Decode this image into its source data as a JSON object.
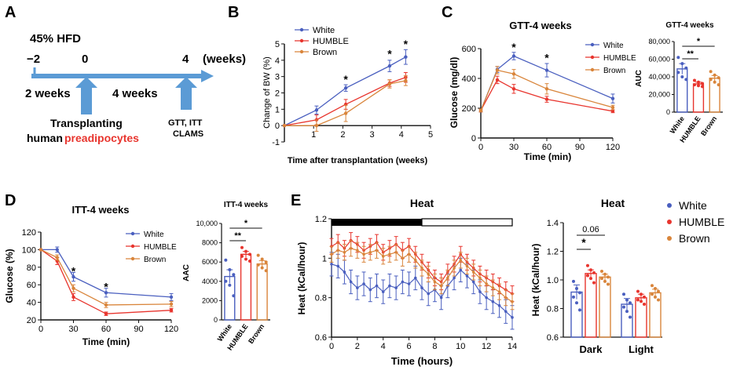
{
  "colors": {
    "white": "#4a5fbf",
    "humble": "#e8352e",
    "brown": "#d9853b",
    "axis": "#111111",
    "timeline": "#5b9bd5",
    "red_text": "#e8352e"
  },
  "panel_letters": [
    "A",
    "B",
    "C",
    "D",
    "E"
  ],
  "panelA": {
    "diet": "45% HFD",
    "ticks": [
      "−2",
      "0",
      "4"
    ],
    "unit": "(weeks)",
    "period1": "2 weeks",
    "period2": "4 weeks",
    "event1_line1": "Transplanting",
    "event1_line2a": "human",
    "event1_line2b": "preadipocytes",
    "event2_line1": "GTT, ITT",
    "event2_line2": "CLAMS"
  },
  "chart_data": [
    {
      "id": "B",
      "type": "line",
      "xlabel": "Time after transplantation (weeks)",
      "ylabel": "Change of BW (%)",
      "xlim": [
        0,
        5
      ],
      "ylim": [
        -1,
        5
      ],
      "xticks": [
        1,
        2,
        3,
        4,
        5
      ],
      "yticks": [
        -1,
        0,
        1,
        2,
        3,
        4,
        5
      ],
      "legend": [
        "White",
        "HUMBLE",
        "Brown"
      ],
      "legend_position": "top-left",
      "series": [
        {
          "name": "White",
          "x": [
            0,
            1.1,
            2.1,
            3.6,
            4.15
          ],
          "y": [
            0,
            0.95,
            2.3,
            3.65,
            4.2
          ],
          "err": [
            0,
            0.25,
            0.2,
            0.35,
            0.45
          ]
        },
        {
          "name": "HUMBLE",
          "x": [
            0,
            1.1,
            2.1,
            3.6,
            4.15
          ],
          "y": [
            0,
            0.35,
            1.3,
            2.6,
            2.95
          ],
          "err": [
            0,
            0.3,
            0.3,
            0.2,
            0.3
          ]
        },
        {
          "name": "Brown",
          "x": [
            0,
            1.1,
            2.1,
            3.6,
            4.15
          ],
          "y": [
            0,
            0.0,
            0.75,
            2.55,
            2.75
          ],
          "err": [
            0,
            0.35,
            0.5,
            0.25,
            0.3
          ]
        }
      ],
      "annotations": [
        {
          "x": 2.1,
          "y": 2.85,
          "text": "*"
        },
        {
          "x": 3.6,
          "y": 4.4,
          "text": "*"
        },
        {
          "x": 4.15,
          "y": 5.0,
          "text": "*"
        }
      ]
    },
    {
      "id": "C",
      "type": "line",
      "title": "GTT-4 weeks",
      "xlabel": "Time (min)",
      "ylabel": "Glucose (mg/dl)",
      "xlim": [
        0,
        120
      ],
      "ylim": [
        0,
        600
      ],
      "xticks": [
        0,
        30,
        60,
        90,
        120
      ],
      "yticks": [
        0,
        200,
        400,
        600
      ],
      "legend": [
        "White",
        "HUMBLE",
        "Brown"
      ],
      "legend_position": "top-right",
      "series": [
        {
          "name": "White",
          "x": [
            0,
            15,
            30,
            60,
            120
          ],
          "y": [
            185,
            460,
            550,
            455,
            265
          ],
          "err": [
            10,
            20,
            25,
            45,
            30
          ]
        },
        {
          "name": "HUMBLE",
          "x": [
            0,
            15,
            30,
            60,
            120
          ],
          "y": [
            185,
            390,
            330,
            260,
            180
          ],
          "err": [
            10,
            25,
            30,
            20,
            10
          ]
        },
        {
          "name": "Brown",
          "x": [
            0,
            15,
            30,
            60,
            120
          ],
          "y": [
            185,
            455,
            430,
            330,
            205
          ],
          "err": [
            10,
            25,
            30,
            35,
            15
          ]
        }
      ],
      "annotations": [
        {
          "x": 30,
          "y": 610,
          "text": "*"
        },
        {
          "x": 60,
          "y": 540,
          "text": "*"
        }
      ]
    },
    {
      "id": "C-AUC",
      "type": "bar",
      "title": "GTT-4 weeks",
      "ylabel": "AUC",
      "categories": [
        "White",
        "HUMBLE",
        "Brown"
      ],
      "values": [
        49000,
        32000,
        38500
      ],
      "err": [
        6000,
        2000,
        3000
      ],
      "ylim": [
        0,
        80000
      ],
      "yticks": [
        "0",
        "20,000",
        "40,000",
        "60,000",
        "80,000"
      ],
      "points": [
        [
          62000,
          55000,
          50000,
          45000,
          40000,
          37000
        ],
        [
          36000,
          34000,
          32500,
          31000,
          30000,
          29000
        ],
        [
          46000,
          42000,
          39000,
          37000,
          34000,
          31000
        ]
      ],
      "brackets": [
        {
          "from": 0,
          "to": 1,
          "text": "**"
        },
        {
          "from": 0,
          "to": 2,
          "text": "*"
        }
      ]
    },
    {
      "id": "D",
      "type": "line",
      "title": "ITT-4 weeks",
      "xlabel": "Time (min)",
      "ylabel": "Glucose (%)",
      "xlim": [
        0,
        120
      ],
      "ylim": [
        20,
        120
      ],
      "xticks": [
        0,
        30,
        60,
        90,
        120
      ],
      "yticks": [
        20,
        40,
        60,
        80,
        100,
        120
      ],
      "legend": [
        "White",
        "HUMBLE",
        "Brown"
      ],
      "legend_position": "top-right",
      "series": [
        {
          "name": "White",
          "x": [
            0,
            15,
            30,
            60,
            120
          ],
          "y": [
            100,
            100,
            69,
            51,
            46
          ],
          "err": [
            0,
            3,
            5,
            5,
            4
          ]
        },
        {
          "name": "HUMBLE",
          "x": [
            0,
            15,
            30,
            60,
            120
          ],
          "y": [
            100,
            87,
            46,
            27,
            31
          ],
          "err": [
            0,
            4,
            4,
            2,
            2
          ]
        },
        {
          "name": "Brown",
          "x": [
            0,
            15,
            30,
            60,
            120
          ],
          "y": [
            100,
            91,
            56,
            37,
            38
          ],
          "err": [
            0,
            3,
            4,
            3,
            3
          ]
        }
      ],
      "annotations": [
        {
          "x": 30,
          "y": 76,
          "text": "*"
        },
        {
          "x": 60,
          "y": 58,
          "text": "*"
        }
      ]
    },
    {
      "id": "D-AAC",
      "type": "bar",
      "title": "ITT-4 weeks",
      "ylabel": "AAC",
      "categories": [
        "White",
        "HUMBLE",
        "Brown"
      ],
      "values": [
        4500,
        6800,
        5800
      ],
      "err": [
        700,
        300,
        350
      ],
      "ylim": [
        0,
        10000
      ],
      "yticks": [
        "0",
        "2000",
        "4000",
        "6000",
        "8000",
        "10,000"
      ],
      "points": [
        [
          6200,
          5200,
          4700,
          4000,
          3600,
          2500
        ],
        [
          7500,
          7100,
          6800,
          6600,
          6300,
          6100
        ],
        [
          6700,
          6300,
          6000,
          5700,
          5400,
          5100
        ]
      ],
      "brackets": [
        {
          "from": 0,
          "to": 1,
          "text": "**"
        },
        {
          "from": 0,
          "to": 2,
          "text": "*"
        }
      ]
    },
    {
      "id": "E",
      "type": "line",
      "title": "Heat",
      "xlabel": "Time (hours)",
      "ylabel": "Heat (kCal/hour)",
      "xlim": [
        0,
        14
      ],
      "ylim": [
        0.6,
        1.2
      ],
      "xticks": [
        0,
        2,
        4,
        6,
        8,
        10,
        12,
        14
      ],
      "yticks": [
        0.6,
        0.8,
        1.0,
        1.2
      ],
      "dark_period": [
        0,
        7
      ],
      "light_period": [
        7,
        14
      ],
      "series": [
        {
          "name": "White",
          "x": [
            0,
            0.5,
            1,
            1.5,
            2,
            2.5,
            3,
            3.5,
            4,
            4.5,
            5,
            5.5,
            6,
            6.5,
            7,
            7.5,
            8,
            8.5,
            9,
            9.5,
            10,
            10.5,
            11,
            11.5,
            12,
            12.5,
            13,
            13.5,
            14
          ],
          "y": [
            0.97,
            0.96,
            0.93,
            0.88,
            0.85,
            0.87,
            0.84,
            0.86,
            0.83,
            0.86,
            0.85,
            0.88,
            0.87,
            0.9,
            0.85,
            0.82,
            0.84,
            0.8,
            0.86,
            0.9,
            0.94,
            0.91,
            0.88,
            0.83,
            0.8,
            0.78,
            0.76,
            0.73,
            0.7
          ],
          "err": 0.06
        },
        {
          "name": "HUMBLE",
          "x": [
            0,
            0.5,
            1,
            1.5,
            2,
            2.5,
            3,
            3.5,
            4,
            4.5,
            5,
            5.5,
            6,
            6.5,
            7,
            7.5,
            8,
            8.5,
            9,
            9.5,
            10,
            10.5,
            11,
            11.5,
            12,
            12.5,
            13,
            13.5,
            14
          ],
          "y": [
            1.06,
            1.08,
            1.05,
            1.09,
            1.07,
            1.04,
            1.06,
            1.08,
            1.03,
            1.05,
            1.07,
            1.04,
            1.06,
            1.02,
            0.98,
            0.94,
            0.9,
            0.88,
            0.93,
            0.97,
            1.02,
            0.98,
            0.95,
            0.92,
            0.9,
            0.88,
            0.86,
            0.84,
            0.82
          ],
          "err": 0.04
        },
        {
          "name": "Brown",
          "x": [
            0,
            0.5,
            1,
            1.5,
            2,
            2.5,
            3,
            3.5,
            4,
            4.5,
            5,
            5.5,
            6,
            6.5,
            7,
            7.5,
            8,
            8.5,
            9,
            9.5,
            10,
            10.5,
            11,
            11.5,
            12,
            12.5,
            13,
            13.5,
            14
          ],
          "y": [
            1.02,
            1.04,
            1.03,
            1.05,
            1.04,
            1.02,
            1.03,
            1.04,
            1.01,
            1.02,
            1.03,
            1.0,
            1.02,
            0.99,
            0.95,
            0.92,
            0.88,
            0.86,
            0.9,
            0.95,
            0.99,
            0.96,
            0.93,
            0.9,
            0.87,
            0.85,
            0.83,
            0.8,
            0.78
          ],
          "err": 0.04
        }
      ]
    },
    {
      "id": "E-bar",
      "type": "bar",
      "title": "Heat",
      "ylabel": "Heat (kCal/hour)",
      "categories": [
        "Dark",
        "Light"
      ],
      "ylim": [
        0.6,
        1.4
      ],
      "yticks": [
        0.6,
        0.8,
        1.0,
        1.2,
        1.4
      ],
      "legend": [
        "White",
        "HUMBLE",
        "Brown"
      ],
      "legend_position": "top-right",
      "series": [
        {
          "name": "White",
          "values": [
            0.915,
            0.83
          ],
          "err": [
            0.05,
            0.04
          ]
        },
        {
          "name": "HUMBLE",
          "values": [
            1.045,
            0.875
          ],
          "err": [
            0.025,
            0.025
          ]
        },
        {
          "name": "Brown",
          "values": [
            1.02,
            0.91
          ],
          "err": [
            0.02,
            0.025
          ]
        }
      ],
      "points": [
        [
          [
            0.99,
            0.94,
            0.91,
            0.88,
            0.84,
            0.79
          ],
          [
            0.9,
            0.86,
            0.84,
            0.81,
            0.78,
            0.74
          ]
        ],
        [
          [
            1.1,
            1.07,
            1.05,
            1.03,
            1.01,
            0.98
          ],
          [
            0.92,
            0.9,
            0.88,
            0.86,
            0.85,
            0.83
          ]
        ],
        [
          [
            1.06,
            1.04,
            1.02,
            1.01,
            0.99,
            0.97
          ],
          [
            0.96,
            0.94,
            0.92,
            0.9,
            0.88,
            0.86
          ]
        ]
      ],
      "brackets": [
        {
          "from": 0,
          "to": 1,
          "text": "*"
        },
        {
          "from": 0,
          "to": 2,
          "text": "0.06"
        }
      ]
    }
  ]
}
